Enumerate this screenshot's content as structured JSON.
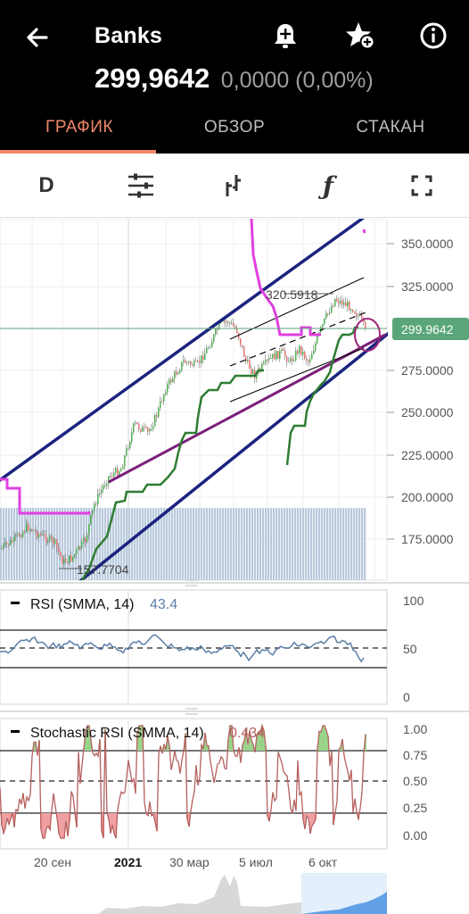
{
  "header": {
    "title": "Banks",
    "price": "299,9642",
    "change": "0,0000 (0,00%)"
  },
  "tabs": [
    {
      "label": "ГРАФИК",
      "active": true
    },
    {
      "label": "ОБЗОР",
      "active": false
    },
    {
      "label": "СТАКАН",
      "active": false
    }
  ],
  "toolbar": {
    "interval_label": "D",
    "icons": [
      "settings-sliders-icon",
      "chart-type-icon",
      "function-icon",
      "fullscreen-icon"
    ]
  },
  "colors": {
    "accent": "#f0876a",
    "trend_channel": "#1a237e",
    "magenta_line": "#e040e0",
    "green_line": "#2e7d32",
    "purple_line": "#7b1f7b",
    "volume": "#b0c4de",
    "price_tag": "#5aa67a",
    "rsi_line": "#5b7fa8",
    "stoch_line": "#b5605f"
  },
  "main_chart": {
    "price_tag": "299.9642",
    "axis_labels": [
      "350.0000",
      "325.0000",
      "275.0000",
      "250.0000",
      "225.0000",
      "200.0000",
      "175.0000"
    ],
    "annotations": {
      "high": "320.5918",
      "low": "157.7704"
    }
  },
  "rsi": {
    "label": "RSI (SMMA, 14)",
    "value": "43.4",
    "axis_labels": [
      "100",
      "50",
      "0"
    ]
  },
  "stoch_rsi": {
    "label": "Stochastic RSI (SMMA, 14)",
    "value": "0.434",
    "axis_labels": [
      "1.00",
      "0.75",
      "0.50",
      "0.25",
      "0.00"
    ]
  },
  "time_axis": [
    "20 сен",
    "2021",
    "30 мар",
    "5 июл",
    "6 окт"
  ]
}
